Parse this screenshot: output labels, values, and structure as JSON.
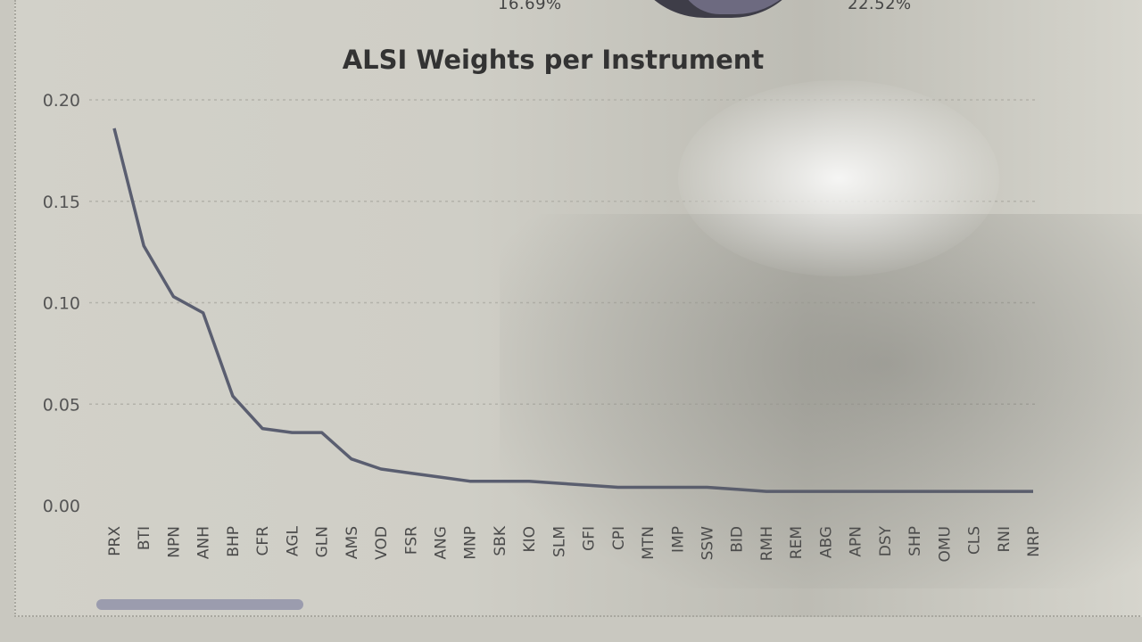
{
  "header_fragments": {
    "pct_left": "16.69%",
    "pct_right": "22.52%"
  },
  "chart_data": {
    "type": "line",
    "title": "ALSI Weights per Instrument",
    "xlabel": "",
    "ylabel": "",
    "ylim": [
      0,
      0.2
    ],
    "yticks": [
      "0.00",
      "0.05",
      "0.10",
      "0.15",
      "0.20"
    ],
    "grid": true,
    "line_color": "#5a5e70",
    "categories": [
      "PRX",
      "BTI",
      "NPN",
      "ANH",
      "BHP",
      "CFR",
      "AGL",
      "GLN",
      "AMS",
      "VOD",
      "FSR",
      "ANG",
      "MNP",
      "SBK",
      "KIO",
      "SLM",
      "GFI",
      "CPI",
      "MTN",
      "IMP",
      "SSW",
      "BID",
      "RMH",
      "REM",
      "ABG",
      "APN",
      "DSY",
      "SHP",
      "OMU",
      "CLS",
      "RNI",
      "NRP"
    ],
    "values": [
      0.186,
      0.128,
      0.103,
      0.095,
      0.054,
      0.038,
      0.036,
      0.036,
      0.023,
      0.018,
      0.016,
      0.014,
      0.012,
      0.012,
      0.012,
      0.011,
      0.01,
      0.009,
      0.009,
      0.009,
      0.009,
      0.008,
      0.007,
      0.007,
      0.007,
      0.007,
      0.007,
      0.007,
      0.007,
      0.007,
      0.007,
      0.007
    ]
  }
}
